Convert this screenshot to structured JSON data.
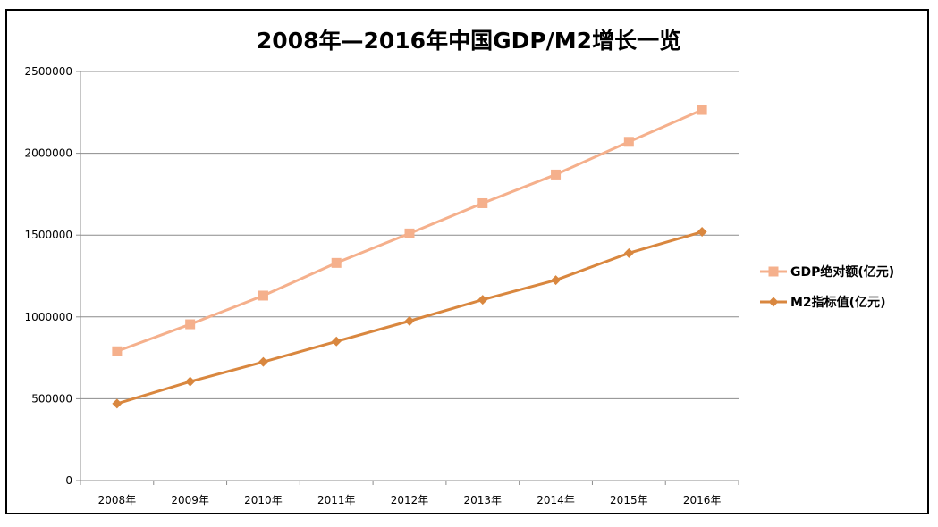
{
  "chart_data": {
    "type": "line",
    "title": "2008年—2016年中国GDP/M2增长一览",
    "categories": [
      "2008年",
      "2009年",
      "2010年",
      "2011年",
      "2012年",
      "2013年",
      "2014年",
      "2015年",
      "2016年"
    ],
    "ylim": [
      0,
      2500000
    ],
    "yticks": [
      0,
      500000,
      1000000,
      1500000,
      2000000,
      2500000
    ],
    "ytick_labels": [
      "0",
      "500000",
      "1000000",
      "1500000",
      "2000000",
      "2500000"
    ],
    "grid": true,
    "legend_position": "right",
    "series": [
      {
        "name": "GDP绝对额(亿元)",
        "marker": "square",
        "color": "#F5B08C",
        "values": [
          790000,
          955000,
          1130000,
          1330000,
          1510000,
          1695000,
          1870000,
          2070000,
          2265000
        ]
      },
      {
        "name": "M2指标值(亿元)",
        "marker": "diamond",
        "color": "#D9873F",
        "values": [
          470000,
          605000,
          725000,
          850000,
          975000,
          1105000,
          1225000,
          1390000,
          1520000
        ]
      }
    ]
  }
}
